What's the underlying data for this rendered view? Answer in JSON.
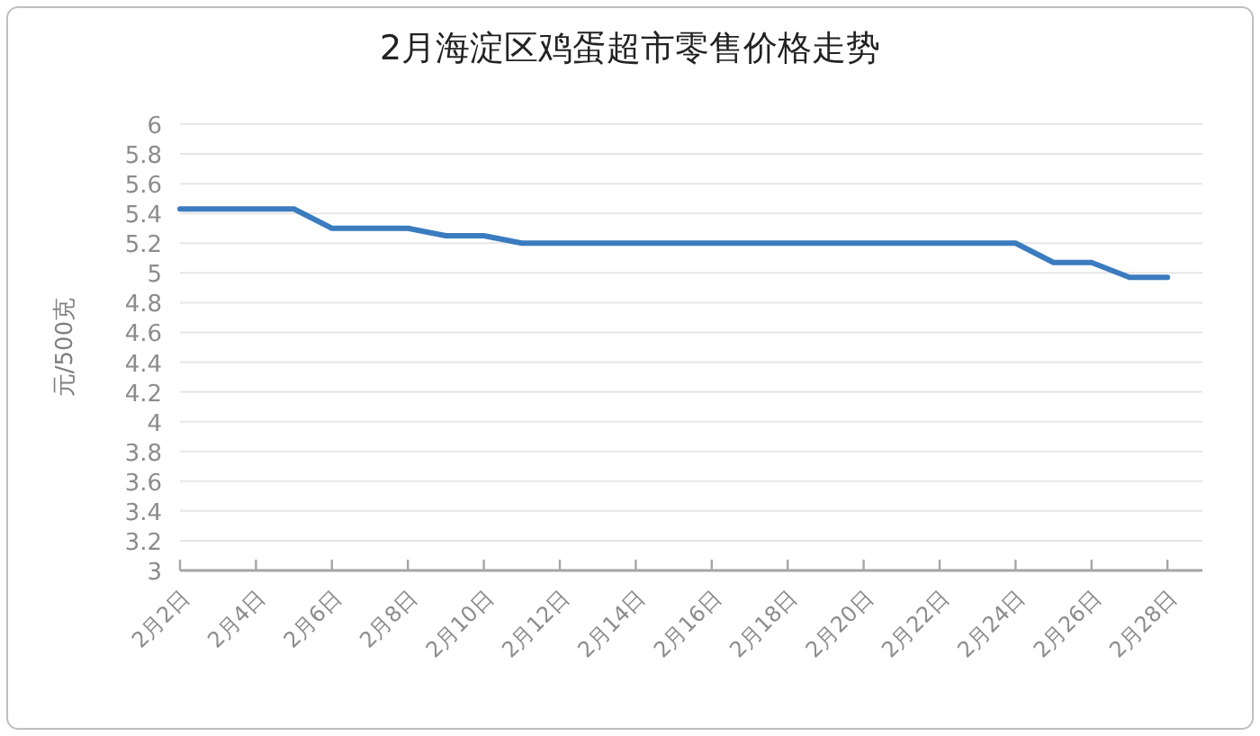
{
  "chart_data": {
    "type": "line",
    "title": "2月海淀区鸡蛋超市零售价格走势",
    "ylabel": "元/500克",
    "categories": [
      "2月2日",
      null,
      "2月4日",
      null,
      "2月6日",
      null,
      "2月8日",
      null,
      "2月10日",
      null,
      "2月12日",
      null,
      "2月14日",
      null,
      "2月16日",
      null,
      "2月18日",
      null,
      "2月20日",
      null,
      "2月22日",
      null,
      "2月24日",
      null,
      "2月26日",
      null,
      "2月28日"
    ],
    "series": [
      {
        "color": "#3b7bbf",
        "values": [
          5.43,
          5.43,
          5.43,
          5.43,
          5.3,
          5.3,
          5.3,
          5.25,
          5.25,
          5.2,
          5.2,
          5.2,
          5.2,
          5.2,
          5.2,
          5.2,
          5.2,
          5.2,
          5.2,
          5.2,
          5.2,
          5.2,
          5.2,
          5.07,
          5.07,
          4.97,
          4.97
        ]
      }
    ],
    "ylim": [
      3,
      6
    ],
    "yticks": [
      3,
      3.2,
      3.4,
      3.6,
      3.8,
      4,
      4.2,
      4.4,
      4.6,
      4.8,
      5,
      5.2,
      5.4,
      5.6,
      5.8,
      6
    ],
    "grid": "y"
  }
}
